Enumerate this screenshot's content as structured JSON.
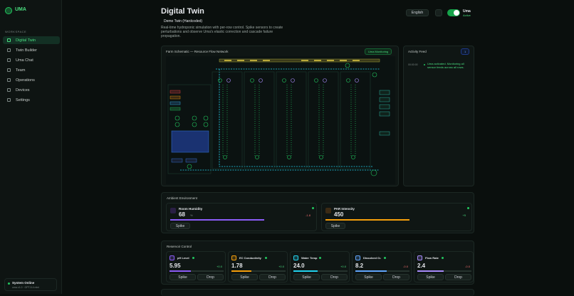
{
  "sidebar": {
    "brand": "UMA",
    "section": "WORKSPACE",
    "nav": [
      "Digital Twin",
      "Twin Builder",
      "Uma Chat",
      "Team",
      "Operations",
      "Devices",
      "Settings"
    ],
    "status": {
      "title": "System Online",
      "detail": "uma v1.0 · GPT-5.4 mini"
    }
  },
  "header": {
    "title": "Digital Twin",
    "twin_select": "Demo Twin (Hardcoded)",
    "description": "Real-time hydroponic simulation with per-row control. Spike sensors to create perturbations and observe Uma's elastic correction and cascade failure propagation.",
    "language": "English",
    "uma_toggle": "Uma",
    "uma_state": "Active"
  },
  "schematic": {
    "title": "Farm Schematic — Resource Flow Network",
    "badge": "Uma Monitoring"
  },
  "activity": {
    "title": "Activity Feed",
    "count": "1",
    "entries": [
      {
        "time": "00:00:00",
        "text": "Uma activated. Monitoring all sensor feeds across all rows."
      }
    ]
  },
  "ambient": {
    "title": "Ambient Environment",
    "spike": "Spike",
    "sensors": [
      {
        "name": "Room Humidity",
        "value": "68",
        "unit": "%",
        "delta": "-1.8"
      },
      {
        "name": "PAR Intensity",
        "value": "450",
        "delta": "+5"
      }
    ]
  },
  "reservoir": {
    "title": "Reservoir Control",
    "spike": "Spike",
    "drop": "Drop",
    "sensors": [
      {
        "name": "pH Level",
        "value": "5.95",
        "delta": "+0.0"
      },
      {
        "name": "EC Conductivity",
        "value": "1.78",
        "delta": "+0.0"
      },
      {
        "name": "Water Temp",
        "value": "24.0",
        "delta": "+0.0"
      },
      {
        "name": "Dissolved O₂",
        "value": "8.2",
        "delta": "-0.0"
      },
      {
        "name": "Flow Rate",
        "value": "2.4",
        "delta": "-0.0"
      }
    ]
  }
}
